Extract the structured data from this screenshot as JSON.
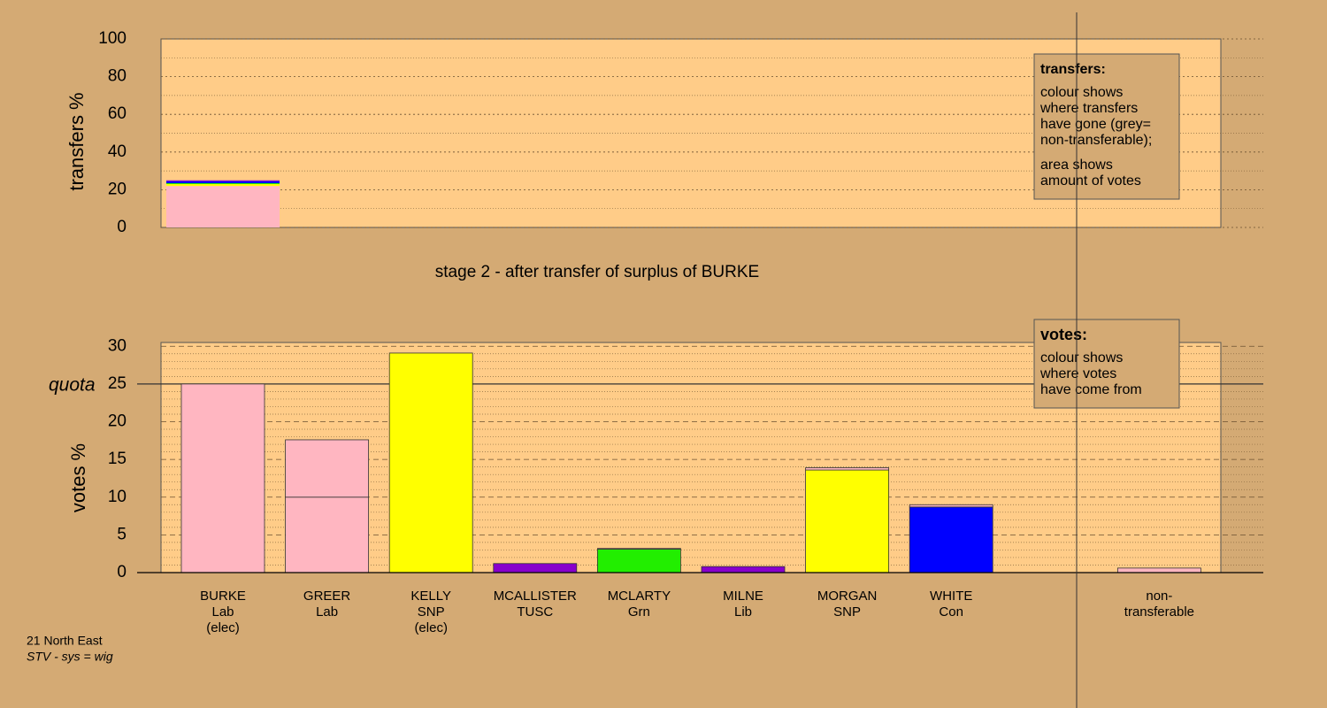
{
  "chart_data": [
    {
      "type": "bar",
      "stacked": true,
      "ylabel": "transfers %",
      "ylim": [
        0,
        100
      ],
      "yticks": [
        0,
        20,
        40,
        60,
        80,
        100
      ],
      "grid": true,
      "segments": [
        [
          {
            "value": 22,
            "color": "#ffb6c1"
          },
          {
            "value": 1,
            "color": "#ffff00"
          },
          {
            "value": 0.5,
            "color": "#22ee00"
          },
          {
            "value": 1,
            "color": "#0000ff"
          },
          {
            "value": 0.5,
            "color": "#8800cc"
          }
        ]
      ],
      "legend": {
        "title": "transfers:",
        "paragraphs": [
          [
            "colour shows",
            "where transfers",
            "have gone (grey=",
            "non-transferable);"
          ],
          [
            "area shows",
            "amount of votes"
          ]
        ]
      }
    },
    {
      "type": "bar",
      "stacked": true,
      "title": "stage 2 - after transfer of surplus of BURKE",
      "ylabel": "votes %",
      "ylim": [
        0,
        30.5
      ],
      "yticks": [
        0,
        5,
        10,
        15,
        20,
        25,
        30
      ],
      "grid": true,
      "quota": {
        "label": "quota",
        "value": 25
      },
      "categories": [
        [
          "BURKE",
          "Lab",
          "(elec)"
        ],
        [
          "GREER",
          "Lab"
        ],
        [
          "KELLY",
          "SNP",
          "(elec)"
        ],
        [
          "MCALLISTER",
          "TUSC"
        ],
        [
          "MCLARTY",
          "Grn"
        ],
        [
          "MILNE",
          "Lib"
        ],
        [
          "MORGAN",
          "SNP"
        ],
        [
          "WHITE",
          "Con"
        ],
        null,
        [
          "non-",
          "transferable"
        ]
      ],
      "segments": [
        [
          {
            "value": 25,
            "color": "#ffb6c1"
          }
        ],
        [
          {
            "value": 10,
            "color": "#ffb6c1"
          },
          {
            "value": 7.6,
            "color": "#ffb6c1"
          }
        ],
        [
          {
            "value": 29.1,
            "color": "#ffff00"
          }
        ],
        [
          {
            "value": 1.2,
            "color": "#8800cc"
          }
        ],
        [
          {
            "value": 3.1,
            "color": "#22ee00"
          },
          {
            "value": 0.1,
            "color": "#ffb6c1"
          }
        ],
        [
          {
            "value": 0.8,
            "color": "#8800cc"
          }
        ],
        [
          {
            "value": 13.6,
            "color": "#ffff00"
          },
          {
            "value": 0.3,
            "color": "#ffb6c1"
          }
        ],
        [
          {
            "value": 8.7,
            "color": "#0000ff"
          },
          {
            "value": 0.3,
            "color": "#ffb6c1"
          }
        ],
        [],
        [
          {
            "value": 0.6,
            "color": "#ffb6c1"
          }
        ]
      ],
      "legend": {
        "title": "votes:",
        "paragraphs": [
          [
            "colour shows",
            "where votes",
            "have come from"
          ]
        ]
      }
    }
  ],
  "footer": [
    "21 North East",
    "STV - sys = wig"
  ]
}
